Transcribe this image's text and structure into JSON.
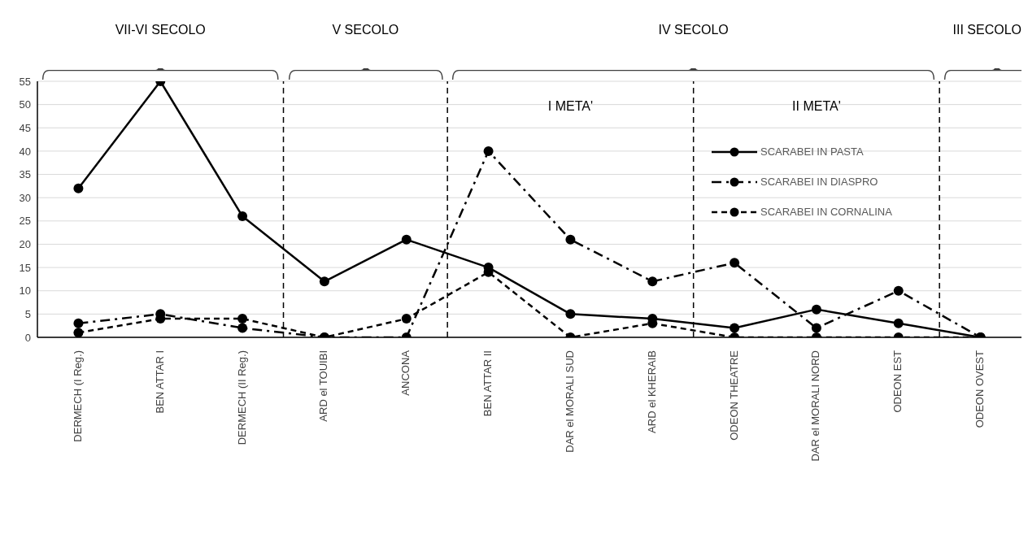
{
  "chart_data": {
    "type": "line",
    "categories": [
      "DERMECH (I Reg.)",
      "BEN ATTAR I",
      "DERMECH (II Reg.)",
      "ARD el TOUIBI",
      "ANCONA",
      "BEN ATTAR II",
      "DAR el MORALI SUD",
      "ARD el KHERAIB",
      "ODEON THEATRE",
      "DAR el MORALI NORD",
      "ODEON EST",
      "ODEON OVEST"
    ],
    "series": [
      {
        "name": "SCARABEI IN PASTA",
        "color": "#000000",
        "line_style": "solid",
        "values": [
          32,
          55,
          26,
          12,
          21,
          15,
          5,
          4,
          2,
          6,
          3,
          0
        ]
      },
      {
        "name": "SCARABEI IN DIASPRO",
        "color": "#000000",
        "line_style": "dashdot",
        "values": [
          3,
          5,
          2,
          0,
          0,
          40,
          21,
          12,
          16,
          2,
          10,
          0
        ]
      },
      {
        "name": "SCARABEI IN CORNALINA",
        "color": "#000000",
        "line_style": "dashed",
        "values": [
          1,
          4,
          4,
          0,
          4,
          14,
          0,
          3,
          0,
          0,
          0,
          0
        ]
      }
    ],
    "ylim": [
      0,
      55
    ],
    "yticks": [
      0,
      5,
      10,
      15,
      20,
      25,
      30,
      35,
      40,
      45,
      50,
      55
    ],
    "grid": "y",
    "legend": "right",
    "marker": "circle",
    "annotations": [
      "VII-VI SECOLO",
      "V SECOLO",
      "IV SECOLO",
      "III SECOLO",
      "I META'",
      "II META'"
    ]
  }
}
